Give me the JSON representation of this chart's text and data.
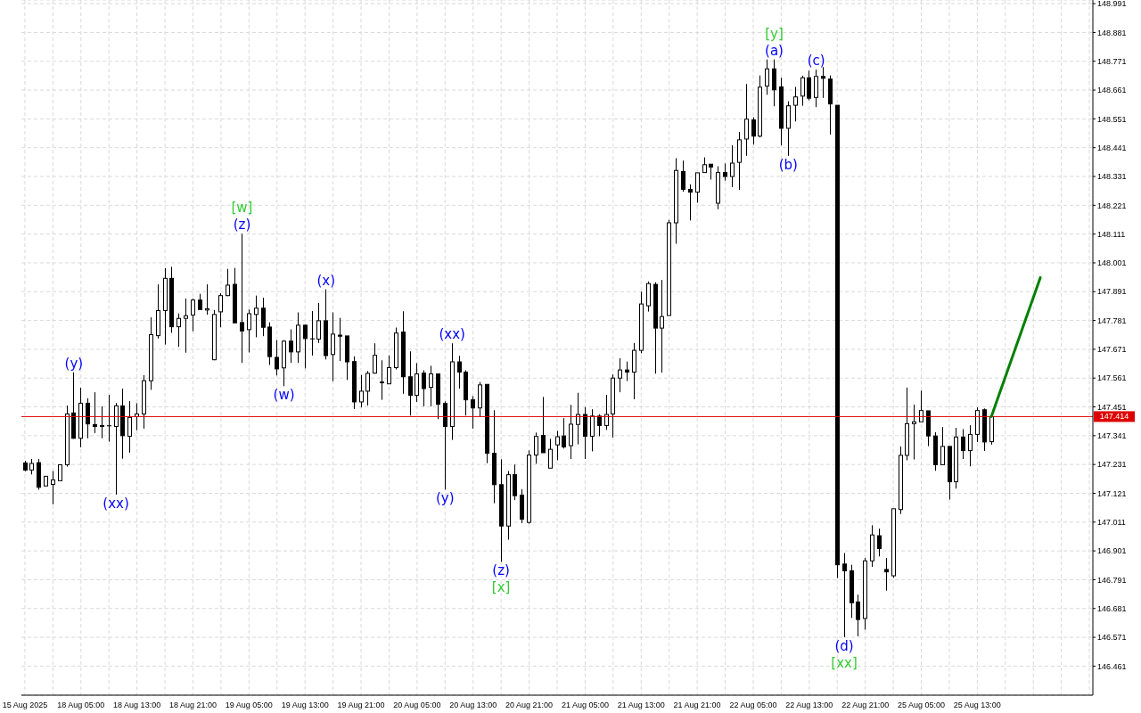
{
  "chart_data": {
    "type": "candlestick",
    "color": "#000000",
    "categories": [
      "15 Aug 2025",
      null,
      null,
      null,
      null,
      null,
      null,
      null,
      "18 Aug 05:00",
      null,
      null,
      null,
      null,
      null,
      null,
      null,
      "18 Aug 13:00",
      null,
      null,
      null,
      null,
      null,
      null,
      null,
      "18 Aug 21:00",
      null,
      null,
      null,
      null,
      null,
      null,
      null,
      "19 Aug 05:00",
      null,
      null,
      null,
      null,
      null,
      null,
      null,
      "19 Aug 13:00",
      null,
      null,
      null,
      null,
      null,
      null,
      null,
      "19 Aug 21:00",
      null,
      null,
      null,
      null,
      null,
      null,
      null,
      "20 Aug 05:00",
      null,
      null,
      null,
      null,
      null,
      null,
      null,
      "20 Aug 13:00",
      null,
      null,
      null,
      null,
      null,
      null,
      null,
      "20 Aug 21:00",
      null,
      null,
      null,
      null,
      null,
      null,
      null,
      "21 Aug 05:00",
      null,
      null,
      null,
      null,
      null,
      null,
      null,
      "21 Aug 13:00",
      null,
      null,
      null,
      null,
      null,
      null,
      null,
      "21 Aug 21:00",
      null,
      null,
      null,
      null,
      null,
      null,
      null,
      "22 Aug 05:00",
      null,
      null,
      null,
      null,
      null,
      null,
      null,
      "22 Aug 13:00",
      null,
      null,
      null,
      null,
      null,
      null,
      null,
      "22 Aug 21:00",
      null,
      null,
      null,
      null,
      null,
      null,
      null,
      "25 Aug 05:00",
      null,
      null,
      null,
      null,
      null,
      null,
      null,
      "25 Aug 13:00",
      null,
      null,
      null,
      null,
      null,
      null,
      null,
      null,
      null,
      null,
      null,
      null,
      null,
      null,
      null,
      null
    ],
    "ohlc": [
      [
        147.237,
        147.245,
        147.205,
        147.21
      ],
      [
        147.21,
        147.252,
        147.193,
        147.235
      ],
      [
        147.238,
        147.252,
        147.135,
        147.144
      ],
      [
        147.149,
        147.186,
        147.149,
        147.186
      ],
      [
        147.155,
        147.206,
        147.079,
        147.172
      ],
      [
        147.169,
        147.23,
        147.169,
        147.23
      ],
      [
        147.23,
        147.456,
        147.223,
        147.424
      ],
      [
        147.428,
        147.583,
        147.329,
        147.331
      ],
      [
        147.331,
        147.524,
        147.297,
        147.465
      ],
      [
        147.465,
        147.484,
        147.331,
        147.386
      ],
      [
        147.383,
        147.507,
        147.351,
        147.376
      ],
      [
        147.38,
        147.453,
        147.331,
        147.376
      ],
      [
        147.379,
        147.497,
        147.318,
        147.379
      ],
      [
        147.376,
        147.466,
        147.116,
        147.455
      ],
      [
        147.455,
        147.521,
        147.253,
        147.341
      ],
      [
        147.339,
        147.473,
        147.276,
        147.411
      ],
      [
        147.414,
        147.465,
        147.362,
        147.424
      ],
      [
        147.424,
        147.572,
        147.368,
        147.551
      ],
      [
        147.551,
        147.793,
        147.516,
        147.727
      ],
      [
        147.723,
        147.919,
        147.712,
        147.819
      ],
      [
        147.819,
        147.981,
        147.689,
        147.942
      ],
      [
        147.942,
        147.986,
        147.734,
        147.757
      ],
      [
        147.757,
        147.808,
        147.68,
        147.789
      ],
      [
        147.789,
        147.865,
        147.658,
        147.799
      ],
      [
        147.802,
        147.865,
        147.74,
        147.859
      ],
      [
        147.859,
        147.883,
        147.821,
        147.823
      ],
      [
        147.821,
        147.919,
        147.803,
        147.826
      ],
      [
        147.631,
        147.821,
        147.629,
        147.804
      ],
      [
        147.814,
        147.885,
        147.755,
        147.876
      ],
      [
        147.876,
        147.978,
        147.874,
        147.916
      ],
      [
        147.919,
        147.982,
        147.772,
        147.772
      ],
      [
        147.773,
        148.112,
        147.619,
        147.741
      ],
      [
        147.746,
        147.823,
        147.659,
        147.807
      ],
      [
        147.804,
        147.876,
        147.717,
        147.828
      ],
      [
        147.828,
        147.868,
        147.721,
        147.755
      ],
      [
        147.756,
        147.774,
        147.611,
        147.643
      ],
      [
        147.64,
        147.706,
        147.571,
        147.596
      ],
      [
        147.6,
        147.706,
        147.53,
        147.702
      ],
      [
        147.702,
        147.747,
        147.619,
        147.661
      ],
      [
        147.661,
        147.812,
        147.619,
        147.763
      ],
      [
        147.763,
        147.766,
        147.598,
        147.712
      ],
      [
        147.711,
        147.817,
        147.647,
        147.711
      ],
      [
        147.71,
        147.848,
        147.695,
        147.78
      ],
      [
        147.78,
        147.9,
        147.632,
        147.647
      ],
      [
        147.651,
        147.812,
        147.549,
        147.729
      ],
      [
        147.725,
        147.791,
        147.626,
        147.721
      ],
      [
        147.722,
        147.722,
        147.554,
        147.623
      ],
      [
        147.624,
        147.644,
        147.443,
        147.47
      ],
      [
        147.47,
        147.573,
        147.449,
        147.511
      ],
      [
        147.511,
        147.588,
        147.456,
        147.579
      ],
      [
        147.58,
        147.694,
        147.578,
        147.648
      ],
      [
        147.546,
        147.629,
        147.478,
        147.543
      ],
      [
        147.539,
        147.648,
        147.539,
        147.601
      ],
      [
        147.601,
        147.754,
        147.594,
        147.733
      ],
      [
        147.737,
        147.816,
        147.501,
        147.566
      ],
      [
        147.566,
        147.663,
        147.418,
        147.495
      ],
      [
        147.495,
        147.618,
        147.47,
        147.577
      ],
      [
        147.58,
        147.591,
        147.453,
        147.521
      ],
      [
        147.526,
        147.608,
        147.453,
        147.577
      ],
      [
        147.577,
        147.577,
        147.404,
        147.461
      ],
      [
        147.464,
        147.472,
        147.135,
        147.376
      ],
      [
        147.376,
        147.694,
        147.325,
        147.623
      ],
      [
        147.623,
        147.646,
        147.521,
        147.584
      ],
      [
        147.584,
        147.591,
        147.418,
        147.478
      ],
      [
        147.478,
        147.492,
        147.368,
        147.447
      ],
      [
        147.447,
        147.546,
        147.412,
        147.535
      ],
      [
        147.537,
        147.537,
        147.236,
        147.274
      ],
      [
        147.274,
        147.438,
        147.083,
        147.154
      ],
      [
        147.154,
        147.251,
        146.859,
        146.996
      ],
      [
        146.996,
        147.206,
        146.944,
        147.192
      ],
      [
        147.192,
        147.231,
        147.095,
        147.112
      ],
      [
        147.114,
        147.137,
        147.007,
        147.022
      ],
      [
        147.01,
        147.285,
        147.005,
        147.267
      ],
      [
        147.267,
        147.353,
        147.234,
        147.338
      ],
      [
        147.342,
        147.489,
        147.276,
        147.276
      ],
      [
        147.217,
        147.329,
        147.217,
        147.289
      ],
      [
        147.306,
        147.359,
        147.247,
        147.337
      ],
      [
        147.34,
        147.408,
        147.292,
        147.298
      ],
      [
        147.303,
        147.459,
        147.252,
        147.385
      ],
      [
        147.384,
        147.505,
        147.308,
        147.422
      ],
      [
        147.422,
        147.45,
        147.252,
        147.339
      ],
      [
        147.339,
        147.442,
        147.281,
        147.416
      ],
      [
        147.416,
        147.423,
        147.339,
        147.38
      ],
      [
        147.38,
        147.497,
        147.363,
        147.422
      ],
      [
        147.424,
        147.575,
        147.334,
        147.561
      ],
      [
        147.561,
        147.637,
        147.507,
        147.592
      ],
      [
        147.592,
        147.624,
        147.55,
        147.584
      ],
      [
        147.584,
        147.695,
        147.48,
        147.667
      ],
      [
        147.667,
        147.891,
        147.656,
        147.844
      ],
      [
        147.837,
        147.93,
        147.815,
        147.922
      ],
      [
        147.919,
        147.927,
        147.578,
        147.752
      ],
      [
        147.752,
        147.936,
        147.582,
        147.796
      ],
      [
        147.8,
        148.165,
        147.8,
        148.154
      ],
      [
        148.154,
        148.401,
        148.074,
        148.354
      ],
      [
        148.35,
        148.392,
        148.273,
        148.282
      ],
      [
        148.282,
        148.301,
        148.163,
        148.271
      ],
      [
        148.271,
        148.345,
        148.231,
        148.345
      ],
      [
        148.346,
        148.404,
        148.346,
        148.376
      ],
      [
        148.378,
        148.378,
        148.319,
        148.367
      ],
      [
        148.229,
        148.37,
        148.206,
        148.346
      ],
      [
        148.346,
        148.381,
        148.315,
        148.331
      ],
      [
        148.331,
        148.45,
        148.29,
        148.382
      ],
      [
        148.385,
        148.501,
        148.28,
        148.471
      ],
      [
        148.474,
        148.684,
        148.41,
        148.55
      ],
      [
        148.547,
        148.557,
        148.453,
        148.485
      ],
      [
        148.485,
        148.717,
        148.48,
        148.672
      ],
      [
        148.676,
        148.778,
        148.643,
        148.742
      ],
      [
        148.742,
        148.778,
        148.599,
        148.662
      ],
      [
        148.673,
        148.708,
        148.45,
        148.515
      ],
      [
        148.515,
        148.618,
        148.41,
        148.601
      ],
      [
        148.603,
        148.673,
        148.541,
        148.635
      ],
      [
        148.638,
        148.716,
        148.601,
        148.708
      ],
      [
        148.708,
        148.735,
        148.622,
        148.63
      ],
      [
        148.633,
        148.739,
        148.596,
        148.713
      ],
      [
        148.713,
        148.749,
        148.631,
        148.706
      ],
      [
        148.703,
        148.717,
        148.491,
        148.608
      ],
      [
        148.603,
        148.603,
        146.797,
        146.848
      ],
      [
        146.851,
        146.893,
        146.571,
        146.825
      ],
      [
        146.825,
        146.848,
        146.645,
        146.703
      ],
      [
        146.706,
        146.734,
        146.575,
        146.639
      ],
      [
        146.643,
        146.874,
        146.6,
        146.863
      ],
      [
        146.863,
        146.999,
        146.84,
        146.962
      ],
      [
        146.959,
        146.986,
        146.88,
        146.91
      ],
      [
        146.83,
        146.874,
        146.749,
        146.821
      ],
      [
        146.806,
        147.062,
        146.798,
        147.062
      ],
      [
        147.059,
        147.3,
        147.042,
        147.266
      ],
      [
        147.266,
        147.525,
        147.247,
        147.387
      ],
      [
        147.387,
        147.46,
        147.25,
        147.394
      ],
      [
        147.394,
        147.513,
        147.394,
        147.437
      ],
      [
        147.436,
        147.436,
        147.301,
        147.34
      ],
      [
        147.34,
        147.354,
        147.207,
        147.23
      ],
      [
        147.23,
        147.374,
        147.23,
        147.3
      ],
      [
        147.3,
        147.3,
        147.097,
        147.165
      ],
      [
        147.165,
        147.371,
        147.139,
        147.336
      ],
      [
        147.336,
        147.366,
        147.252,
        147.284
      ],
      [
        147.284,
        147.381,
        147.224,
        147.346
      ],
      [
        147.346,
        147.449,
        147.317,
        147.437
      ],
      [
        147.44,
        147.445,
        147.283,
        147.317
      ],
      [
        147.318,
        147.419,
        147.307,
        147.414
      ],
      null,
      null,
      null,
      null,
      null,
      null,
      null,
      null,
      null,
      null,
      null,
      null,
      null,
      null
    ],
    "series": [
      {
        "type": "line",
        "color": "#008000",
        "values": [
          null,
          null,
          null,
          null,
          null,
          null,
          null,
          null,
          null,
          null,
          null,
          null,
          null,
          null,
          null,
          null,
          null,
          null,
          null,
          null,
          null,
          null,
          null,
          null,
          null,
          null,
          null,
          null,
          null,
          null,
          null,
          null,
          null,
          null,
          null,
          null,
          null,
          null,
          null,
          null,
          null,
          null,
          null,
          null,
          null,
          null,
          null,
          null,
          null,
          null,
          null,
          null,
          null,
          null,
          null,
          null,
          null,
          null,
          null,
          null,
          null,
          null,
          null,
          null,
          null,
          null,
          null,
          null,
          null,
          null,
          null,
          null,
          null,
          null,
          null,
          null,
          null,
          null,
          null,
          null,
          null,
          null,
          null,
          null,
          null,
          null,
          null,
          null,
          null,
          null,
          null,
          null,
          null,
          null,
          null,
          null,
          null,
          null,
          null,
          null,
          null,
          null,
          null,
          null,
          null,
          null,
          null,
          null,
          null,
          null,
          null,
          null,
          null,
          null,
          null,
          null,
          null,
          null,
          null,
          null,
          null,
          null,
          null,
          null,
          null,
          null,
          null,
          null,
          null,
          null,
          null,
          null,
          null,
          null,
          null,
          null,
          null,
          null,
          147.414,
          null,
          null,
          null,
          null,
          null,
          null,
          147.945,
          null,
          null,
          null,
          null,
          null,
          null,
          null
        ]
      }
    ],
    "ylim": [
      146.35,
      149.005
    ],
    "yticks": [
      146.461,
      146.571,
      146.681,
      146.791,
      146.901,
      147.011,
      147.121,
      147.231,
      147.341,
      147.451,
      147.561,
      147.671,
      147.781,
      147.891,
      148.001,
      148.111,
      148.221,
      148.331,
      148.441,
      148.551,
      148.661,
      148.771,
      148.881,
      148.991
    ],
    "grid": true,
    "ref_lines": [
      {
        "axis": "y",
        "value": 147.414,
        "label": "147.414",
        "color": "#dd0000"
      }
    ],
    "annotations": [
      "(y)",
      "(xx)",
      "[w]",
      "(z)",
      "(w)",
      "(x)",
      "(xx)",
      "(y)",
      "(z)",
      "[x]",
      "[y]",
      "(a)",
      "(b)",
      "(c)",
      "(d)",
      "[xx]"
    ]
  }
}
